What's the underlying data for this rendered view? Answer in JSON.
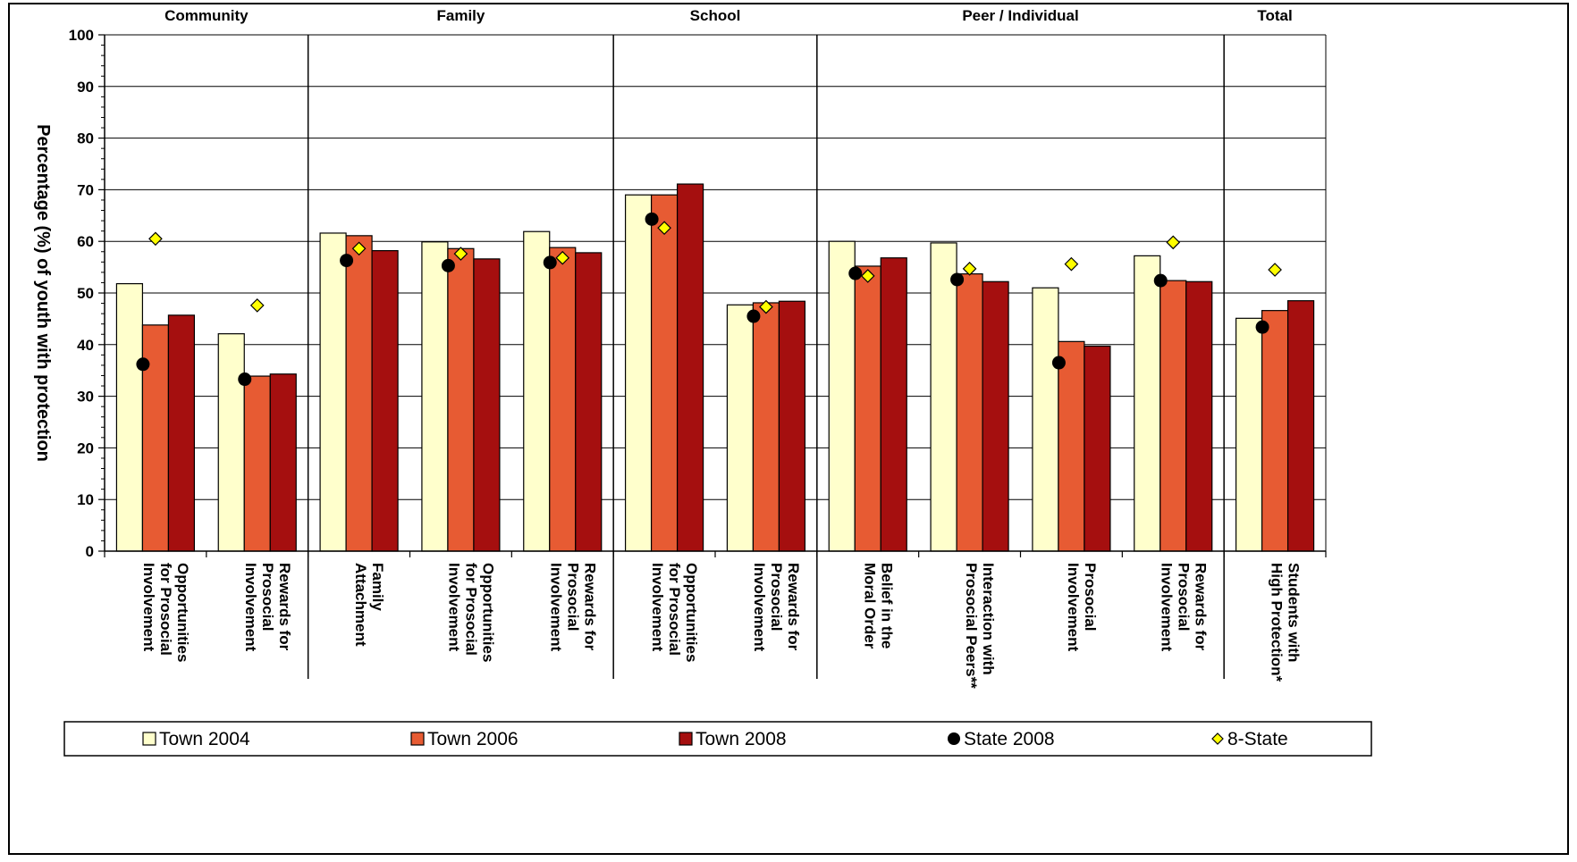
{
  "chart_data": {
    "type": "bar",
    "ylabel": "Percentage (%) of youth with protection",
    "ylim": [
      0,
      100
    ],
    "yticks": [
      "0",
      "10",
      "20",
      "30",
      "40",
      "50",
      "60",
      "70",
      "80",
      "90",
      "100"
    ],
    "grid": true,
    "groups": [
      {
        "name": "Community",
        "count": 2
      },
      {
        "name": "Family",
        "count": 3
      },
      {
        "name": "School",
        "count": 2
      },
      {
        "name": "Peer / Individual",
        "count": 4
      },
      {
        "name": "Total",
        "count": 1
      }
    ],
    "categories": [
      [
        "Opportunities",
        "for Prosocial",
        "Involvement"
      ],
      [
        "Rewards for",
        "Prosocial",
        "Involvement"
      ],
      [
        "Family",
        "Attachment"
      ],
      [
        "Opportunities",
        "for Prosocial",
        "Involvement"
      ],
      [
        "Rewards for",
        "Prosocial",
        "Involvement"
      ],
      [
        "Opportunities",
        "for Prosocial",
        "Involvement"
      ],
      [
        "Rewards for",
        "Prosocial",
        "Involvement"
      ],
      [
        "Belief in the",
        "Moral Order"
      ],
      [
        "Interaction with",
        "Prosocial Peers**"
      ],
      [
        "Prosocial",
        "Involvement"
      ],
      [
        "Rewards for",
        "Prosocial",
        "Involvement"
      ],
      [
        "Students with",
        "High Protection*"
      ]
    ],
    "series": [
      {
        "name": "Town 2004",
        "kind": "bar",
        "color": "#ffffcc",
        "values": [
          51.8,
          42.1,
          61.6,
          59.9,
          61.9,
          69.0,
          47.7,
          60.0,
          59.7,
          51.0,
          57.2,
          45.1
        ]
      },
      {
        "name": "Town 2006",
        "kind": "bar",
        "color": "#e75b33",
        "values": [
          43.8,
          33.9,
          61.1,
          58.6,
          58.8,
          69.0,
          48.1,
          55.2,
          53.7,
          40.6,
          52.4,
          46.6
        ]
      },
      {
        "name": "Town 2008",
        "kind": "bar",
        "color": "#a50f0f",
        "values": [
          45.7,
          34.3,
          58.2,
          56.6,
          57.8,
          71.1,
          48.4,
          56.8,
          52.2,
          39.7,
          52.2,
          48.5
        ]
      },
      {
        "name": "State 2008",
        "kind": "marker",
        "shape": "circle",
        "color": "#000000",
        "values": [
          36.2,
          33.3,
          56.3,
          55.3,
          55.9,
          64.3,
          45.5,
          53.8,
          52.6,
          36.5,
          52.4,
          43.4
        ]
      },
      {
        "name": "8-State",
        "kind": "marker",
        "shape": "diamond",
        "color": "#ffff00",
        "values": [
          60.5,
          47.6,
          58.6,
          57.6,
          56.8,
          62.6,
          47.3,
          53.3,
          54.7,
          55.6,
          59.8,
          54.5
        ]
      }
    ]
  }
}
